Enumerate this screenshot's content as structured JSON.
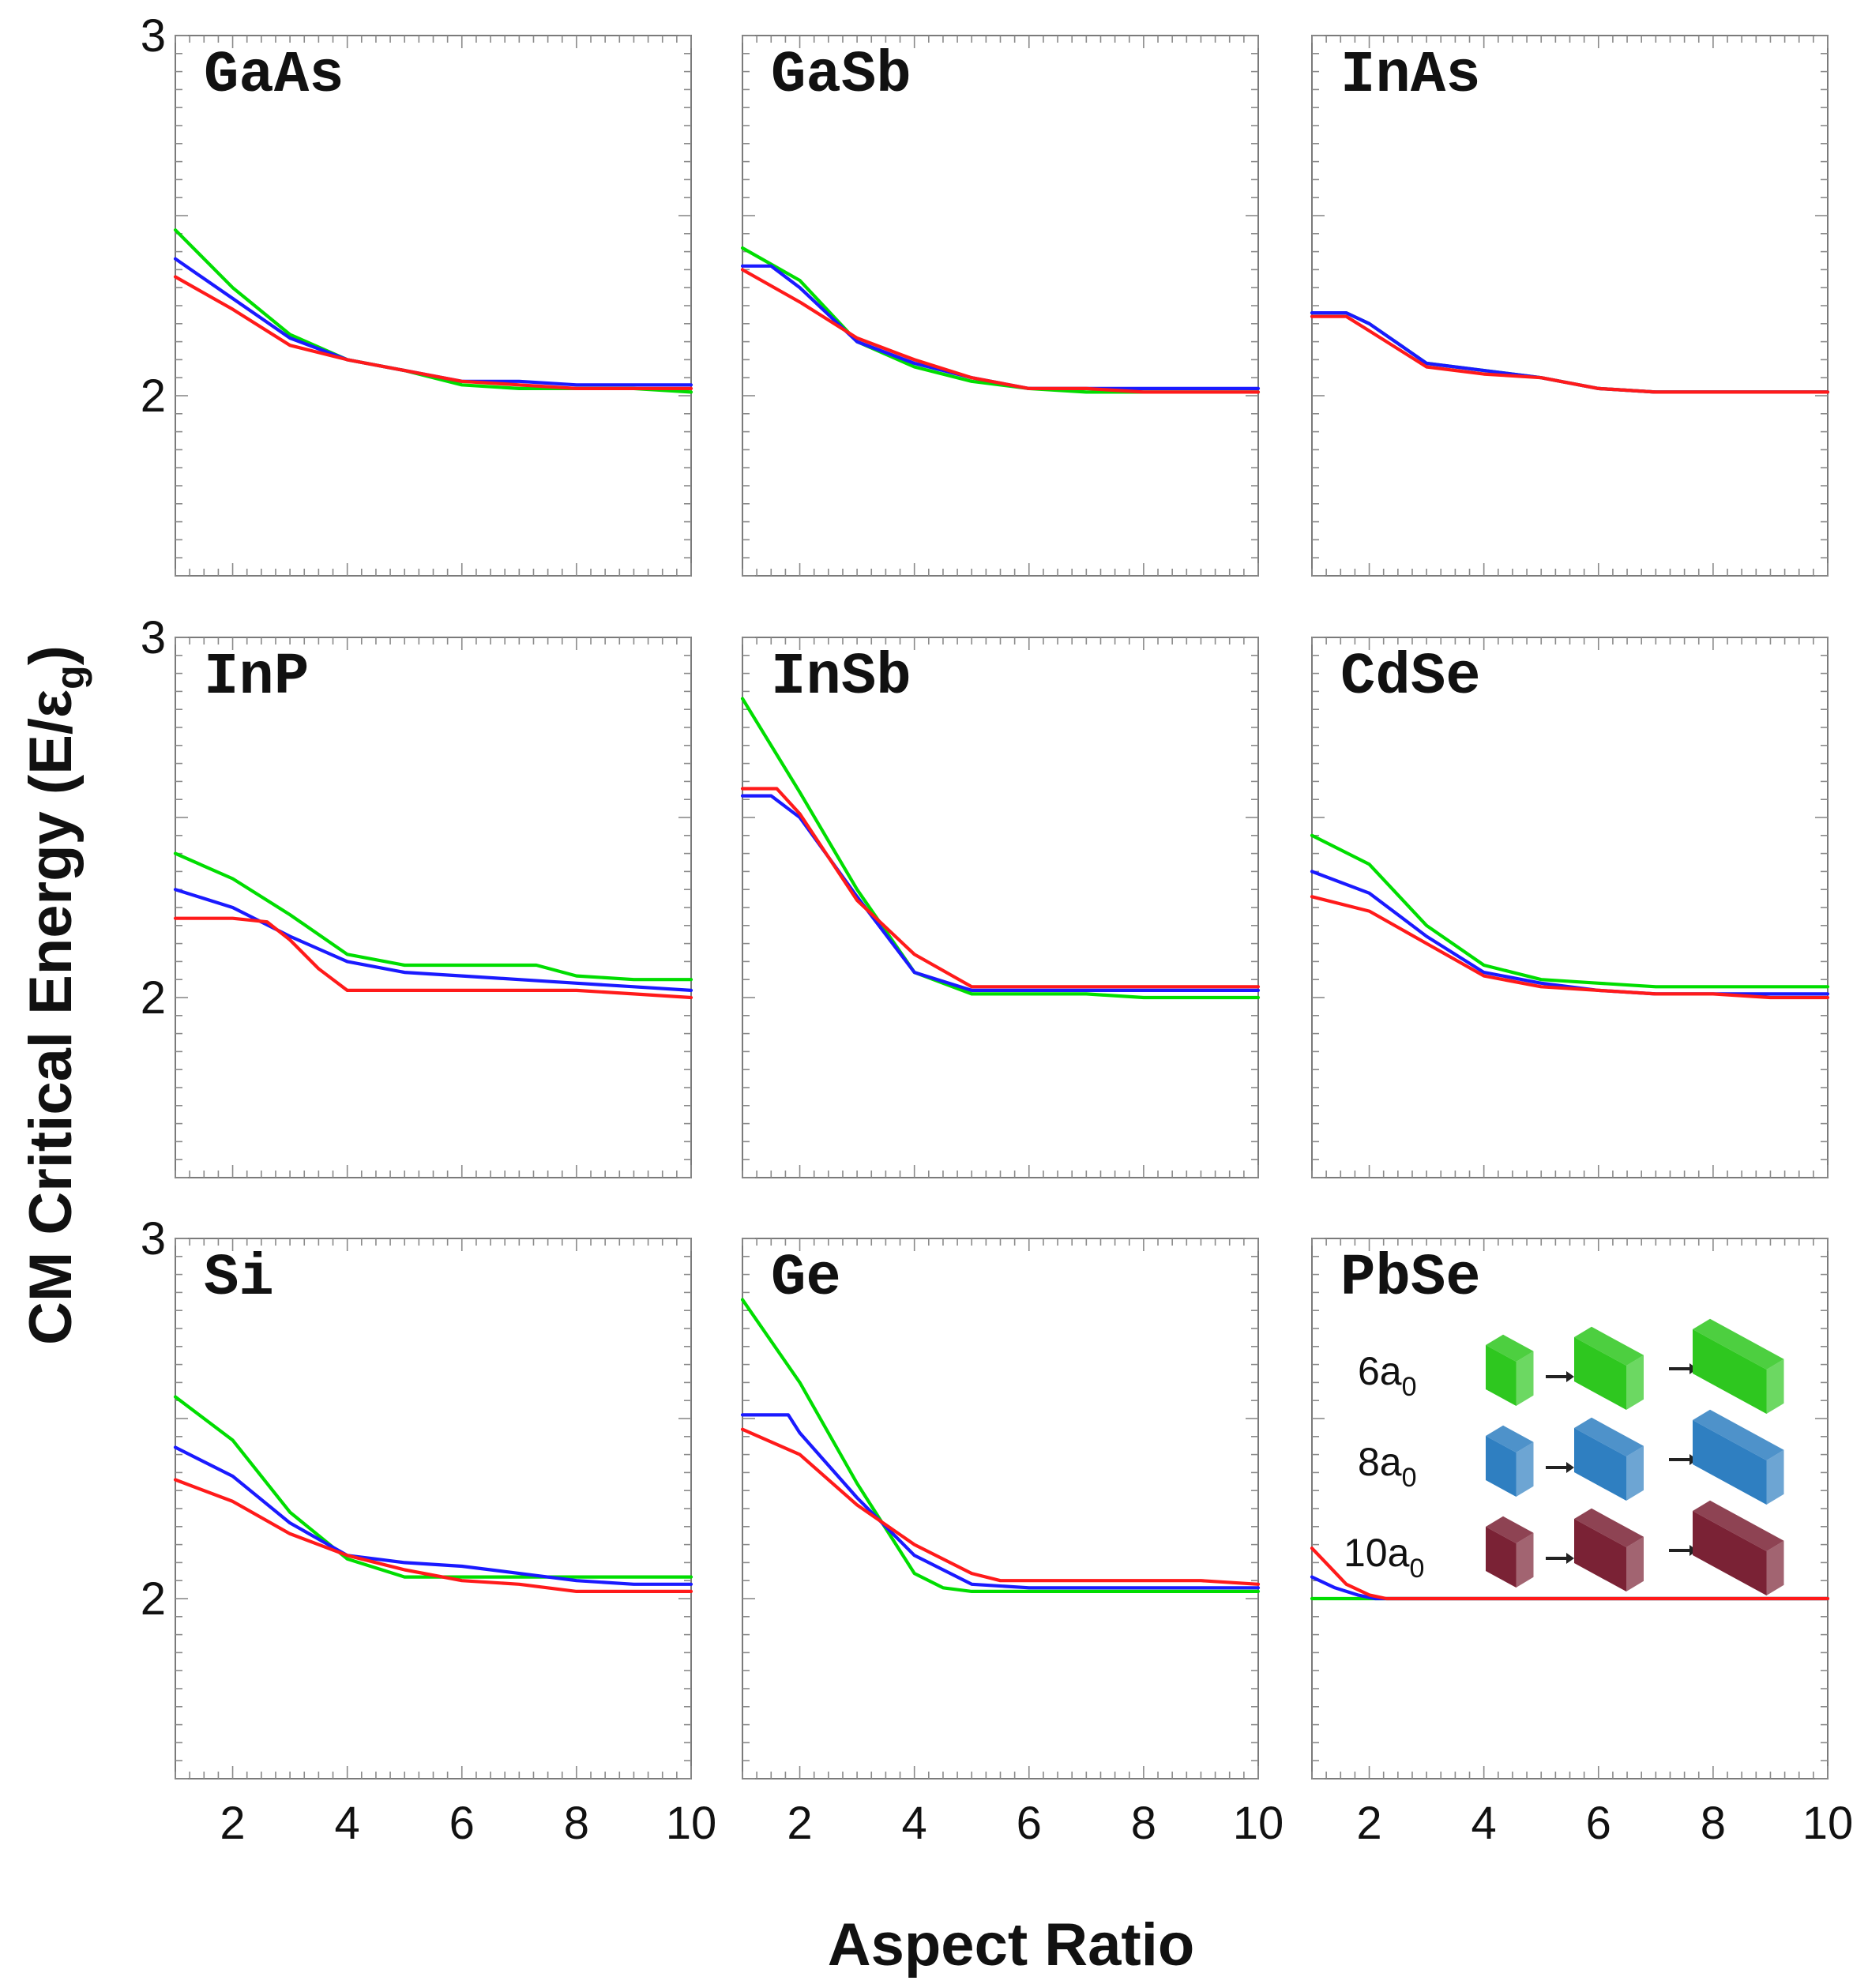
{
  "chart_data": {
    "type": "line",
    "xlabel": "Aspect Ratio",
    "ylabel_main": "CM Critical Energy (E/",
    "ylabel_symbol": "ε",
    "ylabel_sub": "g",
    "ylabel_close": ")",
    "xlim": [
      1,
      10
    ],
    "ylim": [
      1.5,
      3
    ],
    "xticks": [
      "2",
      "4",
      "6",
      "8",
      "10"
    ],
    "yticks": [
      "2",
      "3"
    ],
    "series_colors": {
      "6a0": "#00dd00",
      "8a0": "#1a1aff",
      "10a0": "#ff1a1a"
    },
    "legend": [
      {
        "label": "6a",
        "sub": "0",
        "color": "#2ec71f"
      },
      {
        "label": "8a",
        "sub": "0",
        "color": "#2f7fc1"
      },
      {
        "label": "10a",
        "sub": "0",
        "color": "#7a2235"
      }
    ],
    "panels": [
      {
        "title": "GaAs",
        "series": [
          {
            "name": "6a0",
            "x": [
              1,
              2,
              3,
              4,
              5,
              6,
              7,
              8,
              9,
              10
            ],
            "y": [
              2.46,
              2.3,
              2.17,
              2.1,
              2.07,
              2.03,
              2.02,
              2.02,
              2.02,
              2.01
            ]
          },
          {
            "name": "8a0",
            "x": [
              1,
              2,
              3,
              4,
              5,
              6,
              7,
              8,
              9,
              10
            ],
            "y": [
              2.38,
              2.27,
              2.16,
              2.1,
              2.07,
              2.04,
              2.04,
              2.03,
              2.03,
              2.03
            ]
          },
          {
            "name": "10a0",
            "x": [
              1,
              2,
              3,
              4,
              5,
              6,
              7,
              8,
              9,
              10
            ],
            "y": [
              2.33,
              2.24,
              2.14,
              2.1,
              2.07,
              2.04,
              2.03,
              2.02,
              2.02,
              2.02
            ]
          }
        ]
      },
      {
        "title": "GaSb",
        "series": [
          {
            "name": "6a0",
            "x": [
              1,
              2,
              3,
              4,
              5,
              6,
              7,
              8,
              9,
              10
            ],
            "y": [
              2.41,
              2.32,
              2.15,
              2.08,
              2.04,
              2.02,
              2.01,
              2.01,
              2.01,
              2.01
            ]
          },
          {
            "name": "8a0",
            "x": [
              1,
              1.5,
              2,
              3,
              4,
              5,
              6,
              7,
              8,
              9,
              10
            ],
            "y": [
              2.36,
              2.36,
              2.3,
              2.15,
              2.09,
              2.05,
              2.02,
              2.02,
              2.02,
              2.02,
              2.02
            ]
          },
          {
            "name": "10a0",
            "x": [
              1,
              2,
              3,
              4,
              5,
              6,
              7,
              8,
              9,
              10
            ],
            "y": [
              2.35,
              2.26,
              2.16,
              2.1,
              2.05,
              2.02,
              2.02,
              2.01,
              2.01,
              2.01
            ]
          }
        ]
      },
      {
        "title": "InAs",
        "series": [
          {
            "name": "6a0",
            "x": [
              1,
              1.6,
              2,
              3,
              4,
              5,
              6,
              7,
              8,
              9,
              10
            ],
            "y": [
              2.23,
              2.23,
              2.2,
              2.09,
              2.07,
              2.05,
              2.02,
              2.01,
              2.01,
              2.01,
              2.01
            ]
          },
          {
            "name": "8a0",
            "x": [
              1,
              1.6,
              2,
              3,
              4,
              5,
              6,
              7,
              8,
              9,
              10
            ],
            "y": [
              2.23,
              2.23,
              2.2,
              2.09,
              2.07,
              2.05,
              2.02,
              2.01,
              2.01,
              2.01,
              2.01
            ]
          },
          {
            "name": "10a0",
            "x": [
              1,
              1.6,
              2,
              3,
              4,
              5,
              6,
              7,
              8,
              9,
              10
            ],
            "y": [
              2.22,
              2.22,
              2.18,
              2.08,
              2.06,
              2.05,
              2.02,
              2.01,
              2.01,
              2.01,
              2.01
            ]
          }
        ]
      },
      {
        "title": "InP",
        "series": [
          {
            "name": "6a0",
            "x": [
              1,
              2,
              3,
              4,
              5,
              6,
              7,
              7.3,
              8,
              9,
              10
            ],
            "y": [
              2.4,
              2.33,
              2.23,
              2.12,
              2.09,
              2.09,
              2.09,
              2.09,
              2.06,
              2.05,
              2.05
            ]
          },
          {
            "name": "8a0",
            "x": [
              1,
              2,
              3,
              4,
              5,
              6,
              7,
              8,
              9,
              10
            ],
            "y": [
              2.3,
              2.25,
              2.17,
              2.1,
              2.07,
              2.06,
              2.05,
              2.04,
              2.03,
              2.02
            ]
          },
          {
            "name": "10a0",
            "x": [
              1,
              2,
              2.6,
              3,
              3.5,
              4,
              5,
              6,
              7,
              8,
              9,
              10
            ],
            "y": [
              2.22,
              2.22,
              2.21,
              2.16,
              2.08,
              2.02,
              2.02,
              2.02,
              2.02,
              2.02,
              2.01,
              2.0
            ]
          }
        ]
      },
      {
        "title": "InSb",
        "series": [
          {
            "name": "6a0",
            "x": [
              1,
              2,
              3,
              4,
              5,
              6,
              7,
              8,
              9,
              10
            ],
            "y": [
              2.83,
              2.57,
              2.3,
              2.07,
              2.01,
              2.01,
              2.01,
              2.0,
              2.0,
              2.0
            ]
          },
          {
            "name": "8a0",
            "x": [
              1,
              1.5,
              2,
              3,
              4,
              5,
              6,
              7,
              8,
              9,
              10
            ],
            "y": [
              2.56,
              2.56,
              2.5,
              2.28,
              2.07,
              2.02,
              2.02,
              2.02,
              2.02,
              2.02,
              2.02
            ]
          },
          {
            "name": "10a0",
            "x": [
              1,
              1.6,
              2,
              3,
              4,
              5,
              6,
              7,
              8,
              9,
              10
            ],
            "y": [
              2.58,
              2.58,
              2.51,
              2.27,
              2.12,
              2.03,
              2.03,
              2.03,
              2.03,
              2.03,
              2.03
            ]
          }
        ]
      },
      {
        "title": "CdSe",
        "series": [
          {
            "name": "6a0",
            "x": [
              1,
              2,
              3,
              4,
              5,
              6,
              7,
              8,
              9,
              10
            ],
            "y": [
              2.45,
              2.37,
              2.2,
              2.09,
              2.05,
              2.04,
              2.03,
              2.03,
              2.03,
              2.03
            ]
          },
          {
            "name": "8a0",
            "x": [
              1,
              2,
              3,
              4,
              5,
              6,
              7,
              8,
              9,
              10
            ],
            "y": [
              2.35,
              2.29,
              2.17,
              2.07,
              2.04,
              2.02,
              2.01,
              2.01,
              2.01,
              2.01
            ]
          },
          {
            "name": "10a0",
            "x": [
              1,
              2,
              3,
              4,
              5,
              6,
              7,
              8,
              9,
              10
            ],
            "y": [
              2.28,
              2.24,
              2.15,
              2.06,
              2.03,
              2.02,
              2.01,
              2.01,
              2.0,
              2.0
            ]
          }
        ]
      },
      {
        "title": "Si",
        "series": [
          {
            "name": "6a0",
            "x": [
              1,
              2,
              3,
              4,
              5,
              6,
              7,
              8,
              9,
              10
            ],
            "y": [
              2.56,
              2.44,
              2.24,
              2.11,
              2.06,
              2.06,
              2.06,
              2.06,
              2.06,
              2.06
            ]
          },
          {
            "name": "8a0",
            "x": [
              1,
              2,
              3,
              4,
              5,
              6,
              7,
              8,
              9,
              10
            ],
            "y": [
              2.42,
              2.34,
              2.21,
              2.12,
              2.1,
              2.09,
              2.07,
              2.05,
              2.04,
              2.04
            ]
          },
          {
            "name": "10a0",
            "x": [
              1,
              2,
              3,
              4,
              5,
              6,
              7,
              8,
              9,
              10
            ],
            "y": [
              2.33,
              2.27,
              2.18,
              2.12,
              2.08,
              2.05,
              2.04,
              2.02,
              2.02,
              2.02
            ]
          }
        ]
      },
      {
        "title": "Ge",
        "series": [
          {
            "name": "6a0",
            "x": [
              1,
              2,
              3,
              4,
              4.5,
              5,
              6,
              7,
              8,
              9,
              10
            ],
            "y": [
              2.83,
              2.6,
              2.32,
              2.07,
              2.03,
              2.02,
              2.02,
              2.02,
              2.02,
              2.02,
              2.02
            ]
          },
          {
            "name": "8a0",
            "x": [
              1,
              1.8,
              2,
              3,
              4,
              5,
              6,
              7,
              8,
              9,
              10
            ],
            "y": [
              2.51,
              2.51,
              2.46,
              2.28,
              2.12,
              2.04,
              2.03,
              2.03,
              2.03,
              2.03,
              2.03
            ]
          },
          {
            "name": "10a0",
            "x": [
              1,
              2,
              3,
              4,
              5,
              5.5,
              6,
              7,
              8,
              9,
              10
            ],
            "y": [
              2.47,
              2.4,
              2.26,
              2.15,
              2.07,
              2.05,
              2.05,
              2.05,
              2.05,
              2.05,
              2.04
            ]
          }
        ]
      },
      {
        "title": "PbSe",
        "series": [
          {
            "name": "6a0",
            "x": [
              1,
              1.5,
              2,
              3,
              4,
              5,
              6,
              7,
              8,
              9,
              10
            ],
            "y": [
              2.0,
              2.0,
              2.0,
              2.0,
              2.0,
              2.0,
              2.0,
              2.0,
              2.0,
              2.0,
              2.0
            ]
          },
          {
            "name": "8a0",
            "x": [
              1,
              1.4,
              1.8,
              2.1,
              3,
              4,
              5,
              6,
              7,
              8,
              9,
              10
            ],
            "y": [
              2.06,
              2.03,
              2.01,
              2.0,
              2.0,
              2.0,
              2.0,
              2.0,
              2.0,
              2.0,
              2.0,
              2.0
            ]
          },
          {
            "name": "10a0",
            "x": [
              1,
              1.3,
              1.6,
              2.0,
              2.3,
              3,
              4,
              5,
              6,
              7,
              8,
              9,
              10
            ],
            "y": [
              2.14,
              2.09,
              2.04,
              2.01,
              2.0,
              2.0,
              2.0,
              2.0,
              2.0,
              2.0,
              2.0,
              2.0,
              2.0
            ]
          }
        ]
      }
    ]
  }
}
